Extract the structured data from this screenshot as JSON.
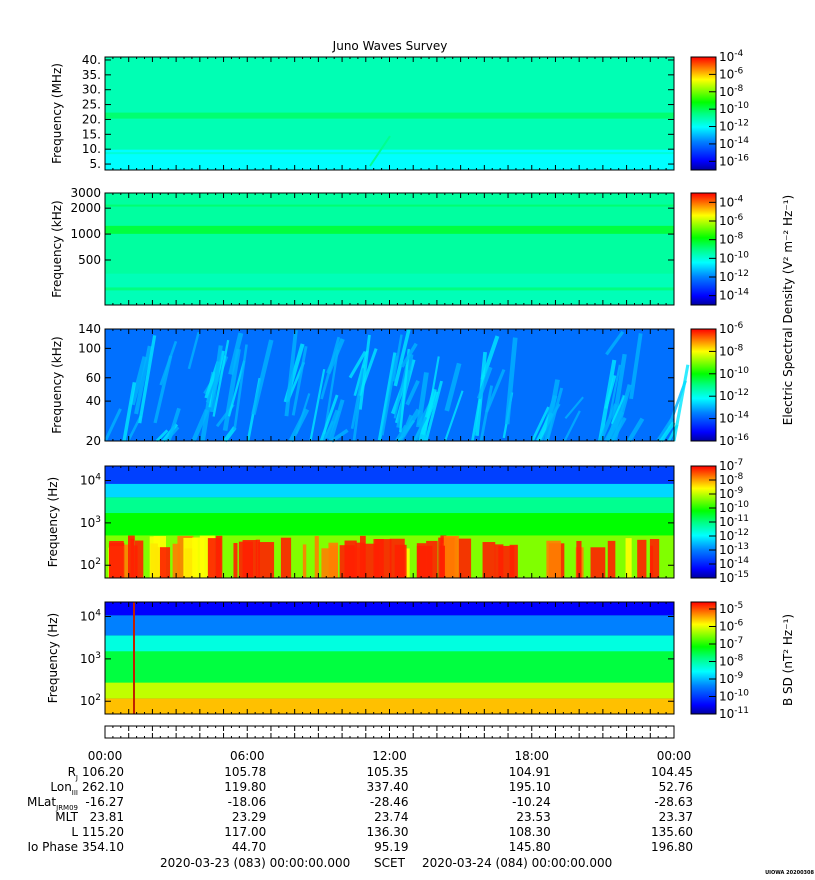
{
  "chart_data": {
    "type": "heatmap",
    "title": "Juno Waves Survey",
    "panels": [
      {
        "id": "p1",
        "ylabel": "Frequency (MHz)",
        "scale": "linear",
        "ylim": [
          3,
          41
        ],
        "yticks": [
          {
            "v": 40,
            "t": "40."
          },
          {
            "v": 35,
            "t": "35."
          },
          {
            "v": 30,
            "t": "30."
          },
          {
            "v": 25,
            "t": "25."
          },
          {
            "v": 20,
            "t": "20."
          },
          {
            "v": 15,
            "t": "15."
          },
          {
            "v": 10,
            "t": "10."
          },
          {
            "v": 5,
            "t": "5."
          }
        ],
        "cbar": {
          "min": -17,
          "max": -4,
          "labels": [
            -4,
            -6,
            -8,
            -10,
            -12,
            -14,
            -16
          ]
        }
      },
      {
        "id": "p2",
        "ylabel": "Frequency (kHz)",
        "scale": "log",
        "ylim": [
          150,
          3000
        ],
        "yticks": [
          {
            "v": 3000,
            "t": "3000"
          },
          {
            "v": 2000,
            "t": "2000"
          },
          {
            "v": 1000,
            "t": "1000"
          },
          {
            "v": 500,
            "t": "500"
          }
        ],
        "cbar": {
          "min": -15,
          "max": -3,
          "labels": [
            -4,
            -6,
            -8,
            -10,
            -12,
            -14
          ]
        }
      },
      {
        "id": "p3",
        "ylabel": "Frequency (kHz)",
        "scale": "log",
        "ylim": [
          20,
          140
        ],
        "yticks": [
          {
            "v": 140,
            "t": "140"
          },
          {
            "v": 100,
            "t": "100"
          },
          {
            "v": 60,
            "t": "60"
          },
          {
            "v": 40,
            "t": "40"
          },
          {
            "v": 20,
            "t": "20"
          }
        ],
        "cbar": {
          "min": -16,
          "max": -6,
          "labels": [
            -6,
            -8,
            -10,
            -12,
            -14,
            -16
          ]
        }
      },
      {
        "id": "p4",
        "ylabel": "Frequency (Hz)",
        "scale": "log",
        "ylim": [
          50,
          22000
        ],
        "yticks": [
          {
            "v": 10000,
            "t": "10",
            "exp": "4"
          },
          {
            "v": 1000,
            "t": "10",
            "exp": "3"
          },
          {
            "v": 100,
            "t": "10",
            "exp": "2"
          }
        ],
        "cbar": {
          "min": -15,
          "max": -7,
          "labels": [
            -7,
            -8,
            -9,
            -10,
            -11,
            -12,
            -13,
            -14,
            -15
          ]
        }
      },
      {
        "id": "p5",
        "ylabel": "Frequency (Hz)",
        "scale": "log",
        "ylim": [
          50,
          22000
        ],
        "yticks": [
          {
            "v": 10000,
            "t": "10",
            "exp": "4"
          },
          {
            "v": 1000,
            "t": "10",
            "exp": "3"
          },
          {
            "v": 100,
            "t": "10",
            "exp": "2"
          }
        ],
        "cbar": {
          "min": -11,
          "max": -4.6,
          "labels": [
            -5,
            -6,
            -7,
            -8,
            -9,
            -10,
            -11
          ]
        }
      }
    ],
    "colorbar_base": "10",
    "colorbar_label_e": "Electric Spectral Density (V² m⁻² Hz⁻¹)",
    "colorbar_label_b": "B SD (nT² Hz⁻¹)",
    "x_ticks": [
      "00:00",
      "06:00",
      "12:00",
      "18:00",
      "00:00"
    ],
    "ephemeris": [
      {
        "label": "R_J",
        "values": [
          "106.20",
          "105.78",
          "105.35",
          "104.91",
          "104.45"
        ]
      },
      {
        "label": "Lon_III",
        "values": [
          "262.10",
          "119.80",
          "337.40",
          "195.10",
          "52.76"
        ]
      },
      {
        "label": "MLat_JRM09",
        "values": [
          "-16.27",
          "-18.06",
          "-28.46",
          "-10.24",
          "-28.63"
        ]
      },
      {
        "label": "MLT",
        "values": [
          "23.81",
          "23.29",
          "23.74",
          "23.53",
          "23.37"
        ]
      },
      {
        "label": "L",
        "values": [
          "115.20",
          "117.00",
          "136.30",
          "108.30",
          "135.60"
        ]
      },
      {
        "label": "Io Phase",
        "values": [
          "354.10",
          "44.70",
          "95.19",
          "145.80",
          "196.80"
        ]
      }
    ],
    "time_start": "2020-03-23 (083) 00:00:00.000",
    "time_mid": "SCET",
    "time_end": "2020-03-24 (084) 00:00:00.000",
    "credit": "UIOWA 20200308"
  },
  "colors": {
    "colormap": [
      "#0000b0",
      "#0000ff",
      "#0080ff",
      "#00ffff",
      "#00ff80",
      "#00ff00",
      "#80ff00",
      "#ffff00",
      "#ff8000",
      "#ff0000"
    ]
  }
}
